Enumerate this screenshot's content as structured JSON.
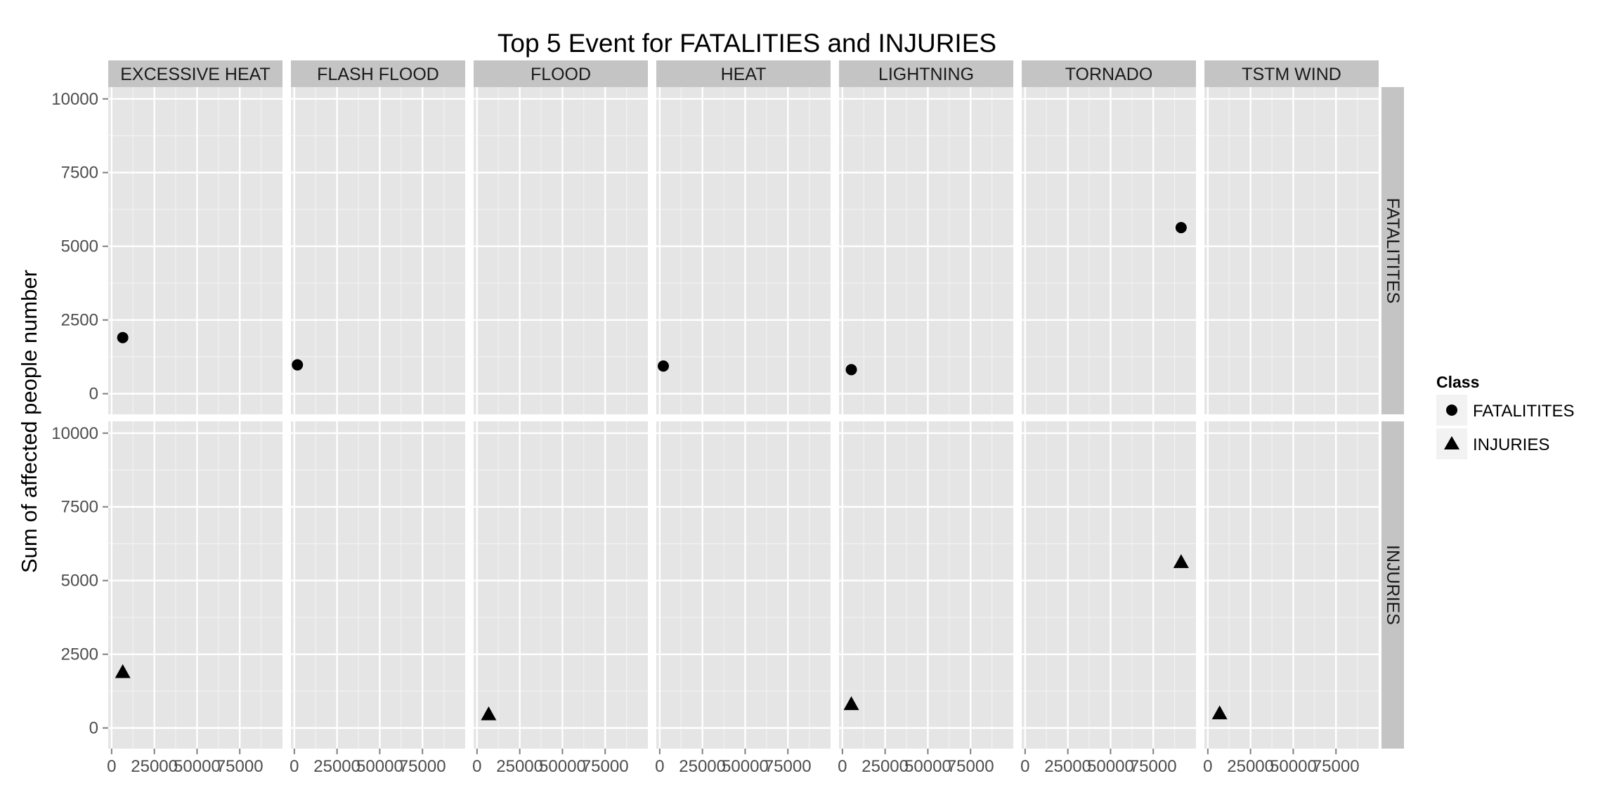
{
  "chart_data": {
    "type": "scatter",
    "title": "Top 5 Event for FATALITIES and INJURIES",
    "xlabel": "",
    "ylabel": "Sum of affected people number",
    "xlim": [
      -2000,
      100000
    ],
    "ylim": [
      -700,
      10400
    ],
    "x_ticks": [
      0,
      25000,
      50000,
      75000
    ],
    "x_tick_labels": [
      "0",
      "25000",
      "50000",
      "75000"
    ],
    "y_ticks": [
      0,
      2500,
      5000,
      7500,
      10000
    ],
    "y_tick_labels": [
      "0",
      "2500",
      "5000",
      "7500",
      "10000"
    ],
    "facet_columns": [
      "EXCESSIVE HEAT",
      "FLASH FLOOD",
      "FLOOD",
      "HEAT",
      "LIGHTNING",
      "TORNADO",
      "TSTM WIND"
    ],
    "facet_rows": [
      "FATALITITES",
      "INJURIES"
    ],
    "grid": true,
    "legend": {
      "title": "Class",
      "position": "right",
      "entries": [
        {
          "label": "FATALITITES",
          "shape": "circle"
        },
        {
          "label": "INJURIES",
          "shape": "triangle"
        }
      ]
    },
    "points": [
      {
        "event": "EXCESSIVE HEAT",
        "class": "FATALITITES",
        "x": 6500,
        "y": 1903
      },
      {
        "event": "FLASH FLOOD",
        "class": "FATALITITES",
        "x": 1800,
        "y": 978
      },
      {
        "event": "HEAT",
        "class": "FATALITITES",
        "x": 2100,
        "y": 937
      },
      {
        "event": "LIGHTNING",
        "class": "FATALITITES",
        "x": 5200,
        "y": 816
      },
      {
        "event": "TORNADO",
        "class": "FATALITITES",
        "x": 91300,
        "y": 5633
      },
      {
        "event": "EXCESSIVE HEAT",
        "class": "INJURIES",
        "x": 6500,
        "y": 1903
      },
      {
        "event": "FLOOD",
        "class": "INJURIES",
        "x": 6800,
        "y": 470
      },
      {
        "event": "LIGHTNING",
        "class": "INJURIES",
        "x": 5200,
        "y": 816
      },
      {
        "event": "TORNADO",
        "class": "INJURIES",
        "x": 91300,
        "y": 5633
      },
      {
        "event": "TSTM WIND",
        "class": "INJURIES",
        "x": 6900,
        "y": 504
      }
    ]
  }
}
